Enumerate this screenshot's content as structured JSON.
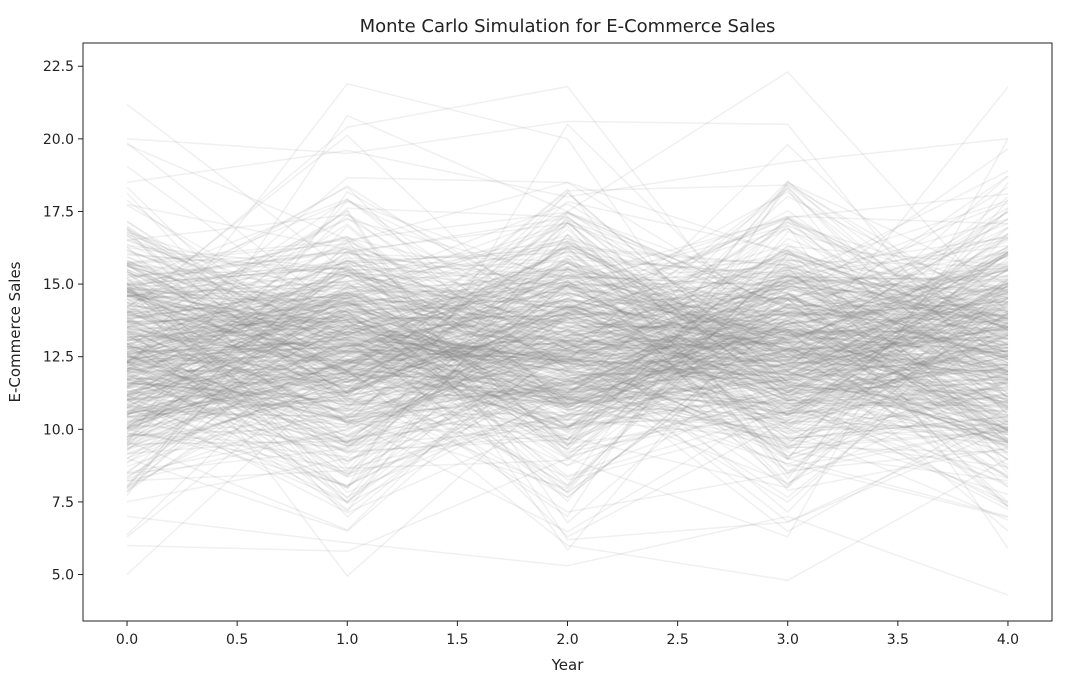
{
  "chart_data": {
    "type": "line",
    "title": "Monte Carlo Simulation for E-Commerce Sales",
    "xlabel": "Year",
    "ylabel": "E-Commerce Sales",
    "x": [
      0,
      1,
      2,
      3,
      4
    ],
    "xlim": [
      -0.2,
      4.2
    ],
    "ylim": [
      3.4,
      23.3
    ],
    "xticks": [
      0.0,
      0.5,
      1.0,
      1.5,
      2.0,
      2.5,
      3.0,
      3.5,
      4.0
    ],
    "xtick_labels": [
      "0.0",
      "0.5",
      "1.0",
      "1.5",
      "2.0",
      "2.5",
      "3.0",
      "3.5",
      "4.0"
    ],
    "yticks": [
      5.0,
      7.5,
      10.0,
      12.5,
      15.0,
      17.5,
      20.0,
      22.5
    ],
    "ytick_labels": [
      "5.0",
      "7.5",
      "10.0",
      "12.5",
      "15.0",
      "17.5",
      "20.0",
      "22.5"
    ],
    "grid": false,
    "legend": "none",
    "line_color": "#808080",
    "line_alpha": 0.12,
    "series": [
      {
        "values": [
          12.0,
          21.9,
          20.0,
          9.0,
          11.0
        ]
      },
      {
        "values": [
          9.5,
          20.8,
          17.5,
          22.3,
          14.0
        ]
      },
      {
        "values": [
          14.0,
          20.4,
          21.8,
          12.0,
          16.0
        ]
      },
      {
        "values": [
          20.0,
          19.5,
          20.6,
          20.5,
          11.0
        ]
      },
      {
        "values": [
          18.5,
          19.6,
          18.0,
          19.2,
          20.0
        ]
      },
      {
        "values": [
          6.0,
          5.8,
          9.0,
          6.3,
          20.0
        ]
      },
      {
        "values": [
          5.0,
          12.0,
          6.0,
          4.8,
          9.0
        ]
      },
      {
        "values": [
          7.0,
          6.1,
          5.3,
          7.0,
          4.3
        ]
      },
      {
        "values": [
          13.0,
          17.5,
          6.2,
          6.8,
          10.0
        ]
      },
      {
        "values": [
          11.0,
          8.0,
          20.5,
          13.0,
          6.5
        ]
      },
      {
        "values": [
          8.5,
          10.0,
          15.0,
          17.0,
          5.9
        ]
      },
      {
        "values": [
          9.0,
          6.5,
          13.0,
          8.0,
          18.5
        ]
      },
      {
        "values": [
          17.0,
          12.0,
          7.0,
          18.5,
          15.0
        ]
      },
      {
        "values": [
          15.0,
          14.5,
          17.0,
          9.0,
          7.0
        ]
      },
      {
        "values": [
          7.5,
          9.0,
          10.5,
          11.0,
          12.5
        ]
      },
      {
        "values": [
          16.0,
          15.5,
          12.0,
          7.5,
          14.0
        ]
      },
      {
        "values": [
          10.0,
          13.0,
          8.0,
          16.0,
          9.5
        ]
      },
      {
        "values": [
          12.5,
          11.5,
          16.5,
          12.0,
          17.5
        ]
      },
      {
        "values": [
          14.5,
          9.5,
          11.0,
          14.5,
          8.0
        ]
      },
      {
        "values": [
          8.0,
          16.0,
          9.5,
          10.5,
          13.5
        ]
      }
    ],
    "n_random_paths": 480,
    "random_path_mean": 12.8,
    "random_path_std": 2.4
  }
}
